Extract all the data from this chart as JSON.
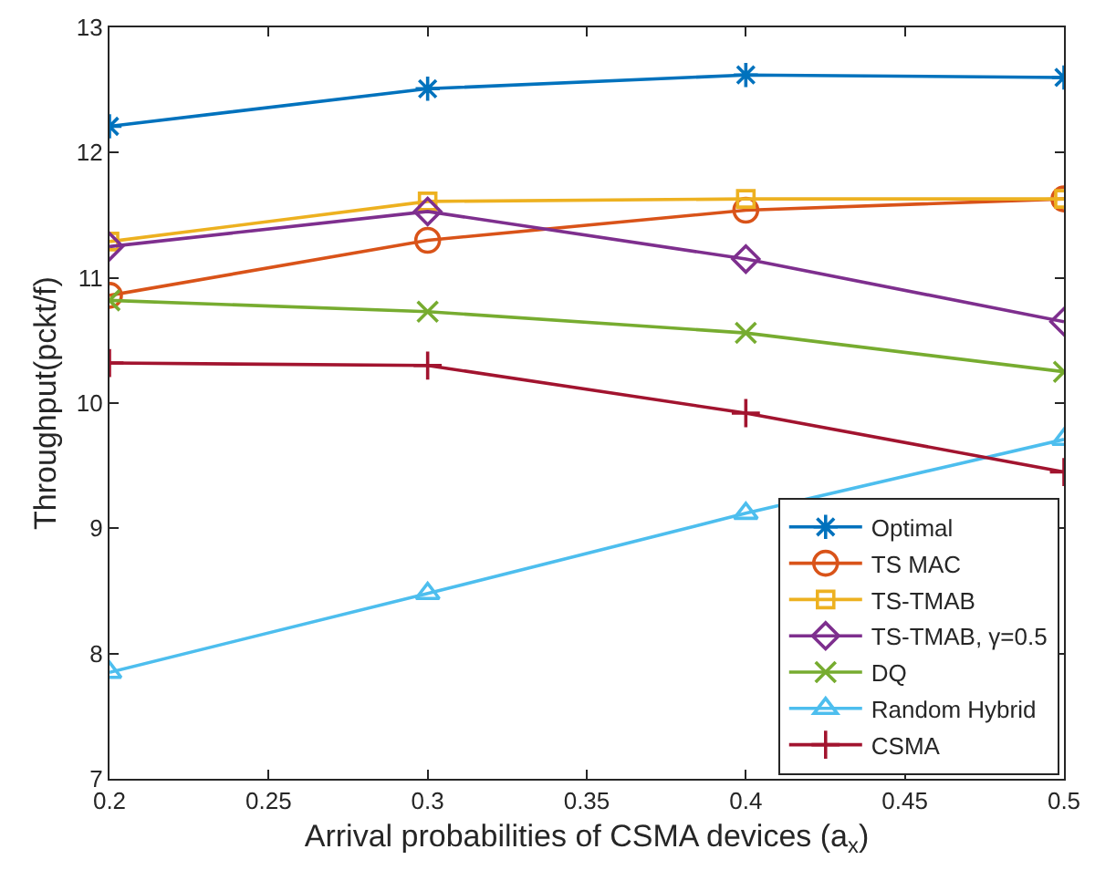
{
  "chart_data": {
    "type": "line",
    "xlabel": "Arrival probabilities of CSMA devices (a$_{x}$)",
    "ylabel": "Throughput(pckt/f)",
    "x": [
      0.2,
      0.3,
      0.4,
      0.5
    ],
    "series": [
      {
        "name": "Optimal",
        "color": "#0072bd",
        "marker": "cross",
        "values": [
          12.21,
          12.51,
          12.62,
          12.6
        ]
      },
      {
        "name": "TS MAC",
        "color": "#d95319",
        "marker": "circle",
        "values": [
          10.86,
          11.3,
          11.54,
          11.63
        ]
      },
      {
        "name": "TS-TMAB",
        "color": "#edb120",
        "marker": "square",
        "values": [
          11.29,
          11.61,
          11.63,
          11.63
        ]
      },
      {
        "name": "TS-TMAB, γ=0.5",
        "color": "#7e2f8e",
        "marker": "diamond",
        "values": [
          11.25,
          11.53,
          11.15,
          10.65
        ]
      },
      {
        "name": "DQ",
        "color": "#77ac30",
        "marker": "x",
        "values": [
          10.82,
          10.73,
          10.56,
          10.25
        ]
      },
      {
        "name": "Random Hybrid",
        "color": "#4dbeee",
        "marker": "triangle",
        "values": [
          7.85,
          8.48,
          9.12,
          9.71
        ]
      },
      {
        "name": "CSMA",
        "color": "#a2142f",
        "marker": "plus",
        "values": [
          10.32,
          10.3,
          9.92,
          9.45
        ]
      }
    ],
    "xlim": [
      0.2,
      0.5
    ],
    "xticks": [
      0.2,
      0.25,
      0.3,
      0.35,
      0.4,
      0.45,
      0.5
    ],
    "ylim": [
      7,
      13
    ],
    "yticks": [
      7,
      8,
      9,
      10,
      11,
      12,
      13
    ],
    "grid": false,
    "legend": "bottom right",
    "line_style": "solid"
  }
}
